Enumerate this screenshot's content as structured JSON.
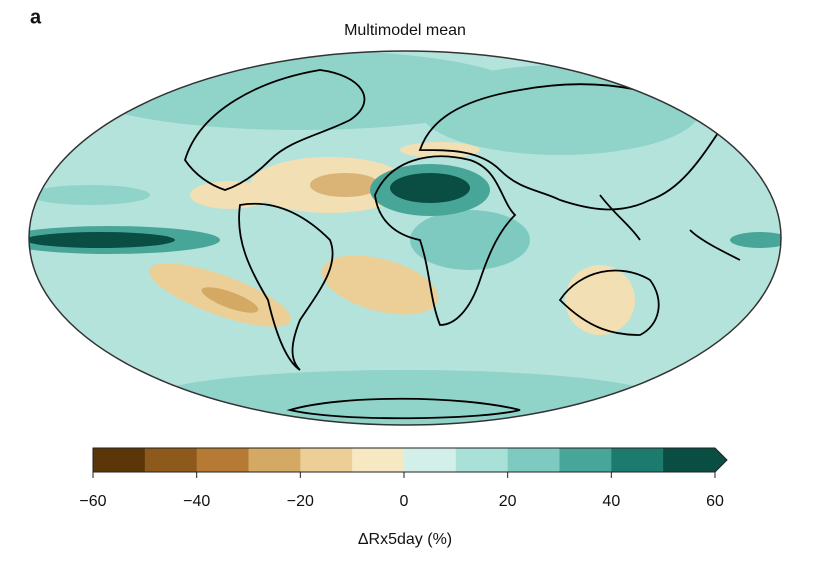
{
  "panel_label": "a",
  "title": "Multimodel mean",
  "colorbar": {
    "label": "ΔRx5day (%)",
    "lim": [
      -60,
      60
    ],
    "ticks": [
      {
        "value": -60,
        "label": "−60"
      },
      {
        "value": -40,
        "label": "−40"
      },
      {
        "value": -20,
        "label": "−20"
      },
      0,
      20,
      40,
      60
    ],
    "levels": [
      -60,
      -50,
      -40,
      -30,
      -20,
      -10,
      0,
      10,
      20,
      30,
      40,
      50,
      60
    ],
    "colors": [
      "#5a3608",
      "#8d5a1c",
      "#b57a33",
      "#d3a964",
      "#ebcf96",
      "#f7e8c4",
      "#d2efea",
      "#a9e0d8",
      "#7ecac0",
      "#48a699",
      "#1d7b6e",
      "#0a4d43"
    ],
    "extend": "max"
  }
}
